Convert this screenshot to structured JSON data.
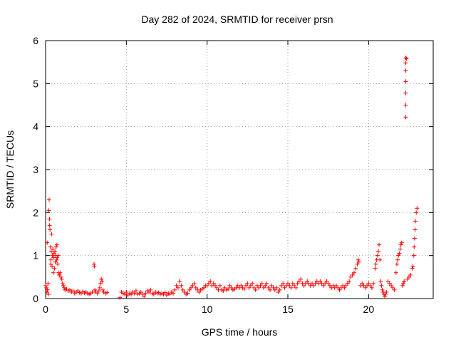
{
  "chart_data": {
    "type": "scatter",
    "title": "Day 282 of 2024, SRMTID for receiver prsn",
    "xlabel": "GPS time / hours",
    "ylabel": "SRMTID / TECUs",
    "xlim": [
      0,
      24
    ],
    "ylim": [
      0,
      6
    ],
    "xticks": [
      0,
      5,
      10,
      15,
      20
    ],
    "yticks": [
      0,
      1,
      2,
      3,
      4,
      5,
      6
    ],
    "grid": true,
    "marker": "plus",
    "colors": {
      "points": "#ff0000",
      "axes": "#000000",
      "grid": "#a0a0a0"
    },
    "series": [
      {
        "points": [
          [
            0.0,
            0.3
          ],
          [
            0.05,
            0.25
          ],
          [
            0.08,
            0.15
          ],
          [
            0.1,
            1.3
          ],
          [
            0.12,
            0.2
          ],
          [
            0.15,
            0.35
          ],
          [
            0.18,
            0.1
          ],
          [
            0.2,
            2.05
          ],
          [
            0.22,
            2.3
          ],
          [
            0.24,
            1.85
          ],
          [
            0.25,
            1.7
          ],
          [
            0.27,
            1.6
          ],
          [
            0.3,
            1.2
          ],
          [
            0.32,
            0.8
          ],
          [
            0.33,
            0.9
          ],
          [
            0.35,
            1.1
          ],
          [
            0.37,
            1.5
          ],
          [
            0.4,
            0.75
          ],
          [
            0.42,
            1.0
          ],
          [
            0.45,
            1.15
          ],
          [
            0.48,
            0.6
          ],
          [
            0.5,
            0.95
          ],
          [
            0.52,
            1.05
          ],
          [
            0.55,
            0.7
          ],
          [
            0.58,
            1.1
          ],
          [
            0.6,
            0.85
          ],
          [
            0.62,
            1.0
          ],
          [
            0.65,
            1.2
          ],
          [
            0.68,
            0.9
          ],
          [
            0.7,
            1.25
          ],
          [
            0.72,
            0.95
          ],
          [
            0.75,
            0.8
          ],
          [
            0.78,
            1.0
          ],
          [
            0.8,
            0.6
          ],
          [
            0.85,
            0.55
          ],
          [
            0.9,
            0.6
          ],
          [
            0.95,
            0.5
          ],
          [
            1.0,
            0.45
          ],
          [
            1.05,
            0.35
          ],
          [
            1.1,
            0.3
          ],
          [
            1.15,
            0.25
          ],
          [
            1.2,
            0.2
          ],
          [
            1.3,
            0.22
          ],
          [
            1.4,
            0.18
          ],
          [
            1.5,
            0.2
          ],
          [
            1.6,
            0.15
          ],
          [
            1.7,
            0.18
          ],
          [
            1.8,
            0.12
          ],
          [
            1.9,
            0.15
          ],
          [
            2.0,
            0.18
          ],
          [
            2.1,
            0.14
          ],
          [
            2.2,
            0.12
          ],
          [
            2.3,
            0.16
          ],
          [
            2.4,
            0.13
          ],
          [
            2.5,
            0.15
          ],
          [
            2.6,
            0.12
          ],
          [
            2.7,
            0.1
          ],
          [
            2.8,
            0.12
          ],
          [
            2.9,
            0.15
          ],
          [
            3.0,
            0.8
          ],
          [
            3.02,
            0.75
          ],
          [
            3.05,
            0.2
          ],
          [
            3.1,
            0.15
          ],
          [
            3.2,
            0.12
          ],
          [
            3.3,
            0.18
          ],
          [
            3.35,
            0.25
          ],
          [
            3.4,
            0.35
          ],
          [
            3.45,
            0.45
          ],
          [
            3.5,
            0.4
          ],
          [
            3.55,
            0.2
          ],
          [
            3.6,
            0.15
          ],
          [
            3.7,
            0.12
          ],
          [
            3.8,
            0.14
          ],
          [
            4.6,
            0.02
          ],
          [
            4.7,
            0.15
          ],
          [
            4.8,
            0.12
          ],
          [
            4.9,
            0.1
          ],
          [
            5.0,
            0.15
          ],
          [
            5.1,
            0.08
          ],
          [
            5.2,
            0.12
          ],
          [
            5.3,
            0.1
          ],
          [
            5.4,
            0.15
          ],
          [
            5.5,
            0.12
          ],
          [
            5.6,
            0.18
          ],
          [
            5.7,
            0.1
          ],
          [
            5.8,
            0.12
          ],
          [
            5.9,
            0.15
          ],
          [
            6.0,
            0.1
          ],
          [
            6.1,
            0.05
          ],
          [
            6.2,
            0.12
          ],
          [
            6.3,
            0.18
          ],
          [
            6.4,
            0.15
          ],
          [
            6.5,
            0.2
          ],
          [
            6.6,
            0.12
          ],
          [
            6.7,
            0.1
          ],
          [
            6.8,
            0.15
          ],
          [
            6.9,
            0.12
          ],
          [
            7.0,
            0.14
          ],
          [
            7.1,
            0.1
          ],
          [
            7.2,
            0.12
          ],
          [
            7.3,
            0.1
          ],
          [
            7.4,
            0.14
          ],
          [
            7.5,
            0.08
          ],
          [
            7.6,
            0.12
          ],
          [
            7.7,
            0.1
          ],
          [
            7.8,
            0.15
          ],
          [
            7.9,
            0.12
          ],
          [
            8.0,
            0.2
          ],
          [
            8.1,
            0.3
          ],
          [
            8.2,
            0.25
          ],
          [
            8.3,
            0.4
          ],
          [
            8.4,
            0.3
          ],
          [
            8.5,
            0.2
          ],
          [
            8.6,
            0.15
          ],
          [
            8.7,
            0.1
          ],
          [
            8.8,
            0.12
          ],
          [
            8.9,
            0.2
          ],
          [
            9.0,
            0.25
          ],
          [
            9.1,
            0.3
          ],
          [
            9.2,
            0.35
          ],
          [
            9.3,
            0.25
          ],
          [
            9.4,
            0.2
          ],
          [
            9.5,
            0.15
          ],
          [
            9.6,
            0.2
          ],
          [
            9.7,
            0.22
          ],
          [
            9.8,
            0.25
          ],
          [
            9.9,
            0.3
          ],
          [
            10.0,
            0.3
          ],
          [
            10.1,
            0.35
          ],
          [
            10.2,
            0.4
          ],
          [
            10.3,
            0.3
          ],
          [
            10.4,
            0.35
          ],
          [
            10.5,
            0.3
          ],
          [
            10.6,
            0.25
          ],
          [
            10.7,
            0.2
          ],
          [
            10.8,
            0.3
          ],
          [
            10.9,
            0.2
          ],
          [
            11.0,
            0.18
          ],
          [
            11.1,
            0.25
          ],
          [
            11.2,
            0.2
          ],
          [
            11.3,
            0.22
          ],
          [
            11.4,
            0.3
          ],
          [
            11.5,
            0.25
          ],
          [
            11.6,
            0.2
          ],
          [
            11.7,
            0.22
          ],
          [
            11.8,
            0.25
          ],
          [
            11.9,
            0.3
          ],
          [
            12.0,
            0.25
          ],
          [
            12.1,
            0.3
          ],
          [
            12.2,
            0.25
          ],
          [
            12.3,
            0.22
          ],
          [
            12.4,
            0.3
          ],
          [
            12.5,
            0.35
          ],
          [
            12.6,
            0.25
          ],
          [
            12.7,
            0.3
          ],
          [
            12.8,
            0.35
          ],
          [
            12.9,
            0.25
          ],
          [
            13.0,
            0.2
          ],
          [
            13.1,
            0.3
          ],
          [
            13.2,
            0.25
          ],
          [
            13.3,
            0.3
          ],
          [
            13.4,
            0.35
          ],
          [
            13.5,
            0.25
          ],
          [
            13.6,
            0.3
          ],
          [
            13.7,
            0.35
          ],
          [
            13.8,
            0.25
          ],
          [
            13.9,
            0.2
          ],
          [
            14.0,
            0.3
          ],
          [
            14.1,
            0.25
          ],
          [
            14.2,
            0.2
          ],
          [
            14.3,
            0.25
          ],
          [
            14.4,
            0.15
          ],
          [
            14.5,
            0.2
          ],
          [
            14.6,
            0.3
          ],
          [
            14.7,
            0.35
          ],
          [
            14.8,
            0.25
          ],
          [
            14.9,
            0.3
          ],
          [
            15.0,
            0.35
          ],
          [
            15.1,
            0.3
          ],
          [
            15.2,
            0.25
          ],
          [
            15.3,
            0.35
          ],
          [
            15.4,
            0.3
          ],
          [
            15.5,
            0.25
          ],
          [
            15.6,
            0.35
          ],
          [
            15.7,
            0.4
          ],
          [
            15.8,
            0.45
          ],
          [
            15.9,
            0.35
          ],
          [
            16.0,
            0.3
          ],
          [
            16.1,
            0.35
          ],
          [
            16.2,
            0.4
          ],
          [
            16.3,
            0.35
          ],
          [
            16.4,
            0.3
          ],
          [
            16.5,
            0.35
          ],
          [
            16.6,
            0.3
          ],
          [
            16.7,
            0.35
          ],
          [
            16.8,
            0.4
          ],
          [
            16.9,
            0.35
          ],
          [
            17.0,
            0.4
          ],
          [
            17.1,
            0.35
          ],
          [
            17.2,
            0.3
          ],
          [
            17.3,
            0.35
          ],
          [
            17.4,
            0.4
          ],
          [
            17.5,
            0.35
          ],
          [
            17.6,
            0.3
          ],
          [
            17.7,
            0.25
          ],
          [
            17.8,
            0.3
          ],
          [
            17.9,
            0.25
          ],
          [
            18.0,
            0.3
          ],
          [
            18.1,
            0.25
          ],
          [
            18.2,
            0.2
          ],
          [
            18.3,
            0.25
          ],
          [
            18.4,
            0.3
          ],
          [
            18.5,
            0.25
          ],
          [
            18.6,
            0.3
          ],
          [
            18.7,
            0.35
          ],
          [
            18.8,
            0.4
          ],
          [
            18.9,
            0.5
          ],
          [
            19.0,
            0.55
          ],
          [
            19.1,
            0.6
          ],
          [
            19.2,
            0.7
          ],
          [
            19.3,
            0.8
          ],
          [
            19.35,
            0.9
          ],
          [
            19.4,
            0.85
          ],
          [
            19.5,
            0.3
          ],
          [
            19.6,
            0.35
          ],
          [
            19.7,
            0.3
          ],
          [
            19.8,
            0.25
          ],
          [
            19.9,
            0.3
          ],
          [
            20.0,
            0.35
          ],
          [
            20.1,
            0.3
          ],
          [
            20.2,
            0.25
          ],
          [
            20.3,
            0.35
          ],
          [
            20.4,
            0.7
          ],
          [
            20.45,
            0.8
          ],
          [
            20.5,
            0.9
          ],
          [
            20.55,
            1.0
          ],
          [
            20.6,
            1.1
          ],
          [
            20.65,
            1.25
          ],
          [
            20.7,
            0.9
          ],
          [
            20.75,
            0.4
          ],
          [
            20.8,
            0.3
          ],
          [
            20.85,
            0.2
          ],
          [
            20.9,
            0.15
          ],
          [
            20.95,
            0.1
          ],
          [
            21.0,
            0.05
          ],
          [
            21.05,
            0.1
          ],
          [
            21.1,
            0.15
          ],
          [
            21.2,
            0.4
          ],
          [
            21.3,
            0.35
          ],
          [
            21.4,
            0.3
          ],
          [
            21.5,
            0.25
          ],
          [
            21.6,
            0.2
          ],
          [
            21.7,
            0.6
          ],
          [
            21.75,
            0.8
          ],
          [
            21.8,
            0.9
          ],
          [
            21.85,
            1.0
          ],
          [
            21.9,
            1.05
          ],
          [
            21.95,
            1.15
          ],
          [
            22.0,
            1.25
          ],
          [
            22.05,
            1.3
          ],
          [
            22.1,
            0.3
          ],
          [
            22.15,
            0.35
          ],
          [
            22.2,
            0.4
          ],
          [
            22.3,
            4.22
          ],
          [
            22.3,
            4.5
          ],
          [
            22.3,
            4.78
          ],
          [
            22.3,
            5.05
          ],
          [
            22.3,
            5.3
          ],
          [
            22.3,
            5.48
          ],
          [
            22.3,
            5.6
          ],
          [
            22.35,
            5.58
          ],
          [
            22.4,
            0.45
          ],
          [
            22.5,
            0.5
          ],
          [
            22.6,
            0.55
          ],
          [
            22.7,
            0.7
          ],
          [
            22.75,
            0.75
          ],
          [
            22.8,
            1.0
          ],
          [
            22.82,
            1.2
          ],
          [
            22.85,
            1.4
          ],
          [
            22.88,
            1.6
          ],
          [
            22.9,
            1.8
          ],
          [
            22.95,
            2.0
          ],
          [
            23.0,
            2.1
          ]
        ]
      }
    ]
  }
}
